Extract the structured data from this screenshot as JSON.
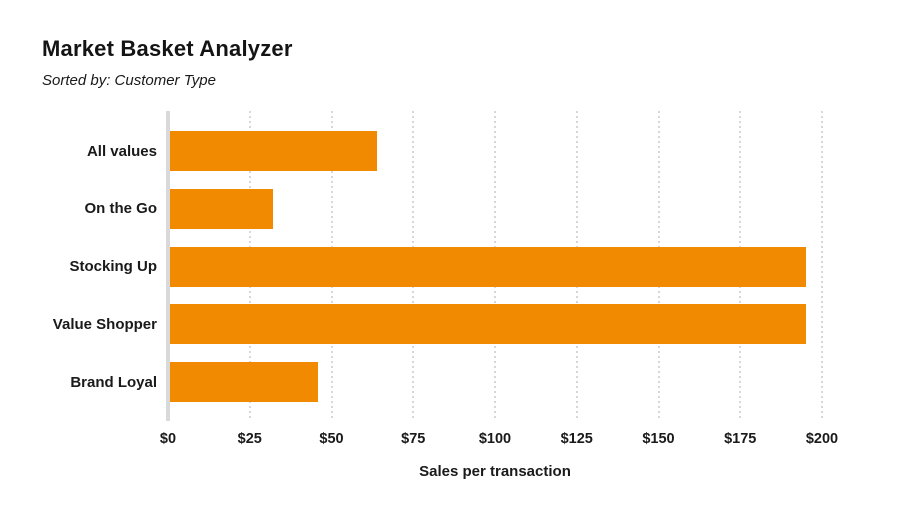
{
  "header": {
    "title": "Market Basket Analyzer",
    "subtitle": "Sorted by: Customer Type"
  },
  "chart_data": {
    "type": "bar",
    "orientation": "horizontal",
    "title": "Market Basket Analyzer",
    "subtitle": "Sorted by: Customer Type",
    "categories": [
      "All values",
      "On the Go",
      "Stocking Up",
      "Value Shopper",
      "Brand Loyal"
    ],
    "values": [
      64,
      32,
      195,
      195,
      46
    ],
    "xlabel": "Sales per transaction",
    "ylabel": "",
    "xlim": [
      0,
      200
    ],
    "x_tick_values": [
      0,
      25,
      50,
      75,
      100,
      125,
      150,
      175,
      200
    ],
    "x_tick_labels": [
      "$0",
      "$25",
      "$50",
      "$75",
      "$100",
      "$125",
      "$150",
      "$175",
      "$200"
    ],
    "grid": "dotted-vertical",
    "legend": "none",
    "colors": {
      "bar": "#f18a00",
      "axis_line": "#d9d9d9",
      "gridline": "#d7d7d7",
      "text": "#1a1a1a"
    }
  }
}
